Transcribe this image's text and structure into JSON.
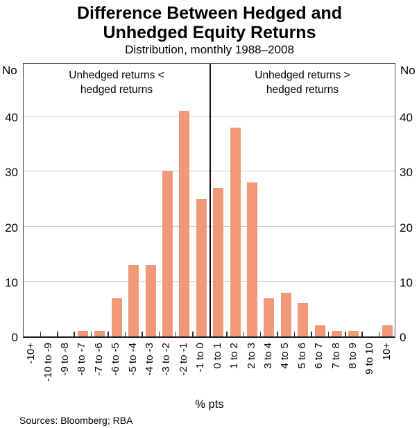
{
  "title": {
    "line1": "Difference Between Hedged and",
    "line2": "Unhedged Equity Returns"
  },
  "subtitle": "Distribution, monthly 1988–2008",
  "axis": {
    "y_unit_left": "No",
    "y_unit_right": "No",
    "x_label": "% pts",
    "y_ticks": [
      0,
      10,
      20,
      30,
      40
    ]
  },
  "annotations": {
    "left_line1": "Unhedged returns <",
    "left_line2": "hedged returns",
    "right_line1": "Unhedged returns >",
    "right_line2": "hedged returns"
  },
  "footer": {
    "sources": "Sources: Bloomberg; RBA"
  },
  "colors": {
    "bar": "#F09878",
    "gridline": "#cccccc",
    "divider": "#111111"
  },
  "chart_data": {
    "type": "bar",
    "title": "Difference Between Hedged and Unhedged Equity Returns",
    "subtitle": "Distribution, monthly 1988–2008",
    "categories": [
      "-10+",
      "-10 to -9",
      "-9 to -8",
      "-8 to -7",
      "-7 to -6",
      "-6 to -5",
      "-5 to -4",
      "-4 to -3",
      "-3 to -2",
      "-2 to -1",
      "-1 to 0",
      "0 to 1",
      "1 to 2",
      "2 to 3",
      "3 to 4",
      "4 to 5",
      "5 to 6",
      "6 to 7",
      "7 to 8",
      "8 to 9",
      "9 to 10",
      "10+"
    ],
    "values": [
      0,
      0,
      0,
      1,
      1,
      7,
      13,
      13,
      30,
      41,
      25,
      27,
      38,
      28,
      7,
      8,
      6,
      2,
      1,
      1,
      0,
      2
    ],
    "xlabel": "% pts",
    "ylabel": "No",
    "ylim": [
      0,
      50
    ],
    "grid": "horizontal",
    "legend": "none",
    "divider_boundary_index": 11,
    "annotation_left_of_divider": "Unhedged returns < hedged returns",
    "annotation_right_of_divider": "Unhedged returns > hedged returns"
  }
}
